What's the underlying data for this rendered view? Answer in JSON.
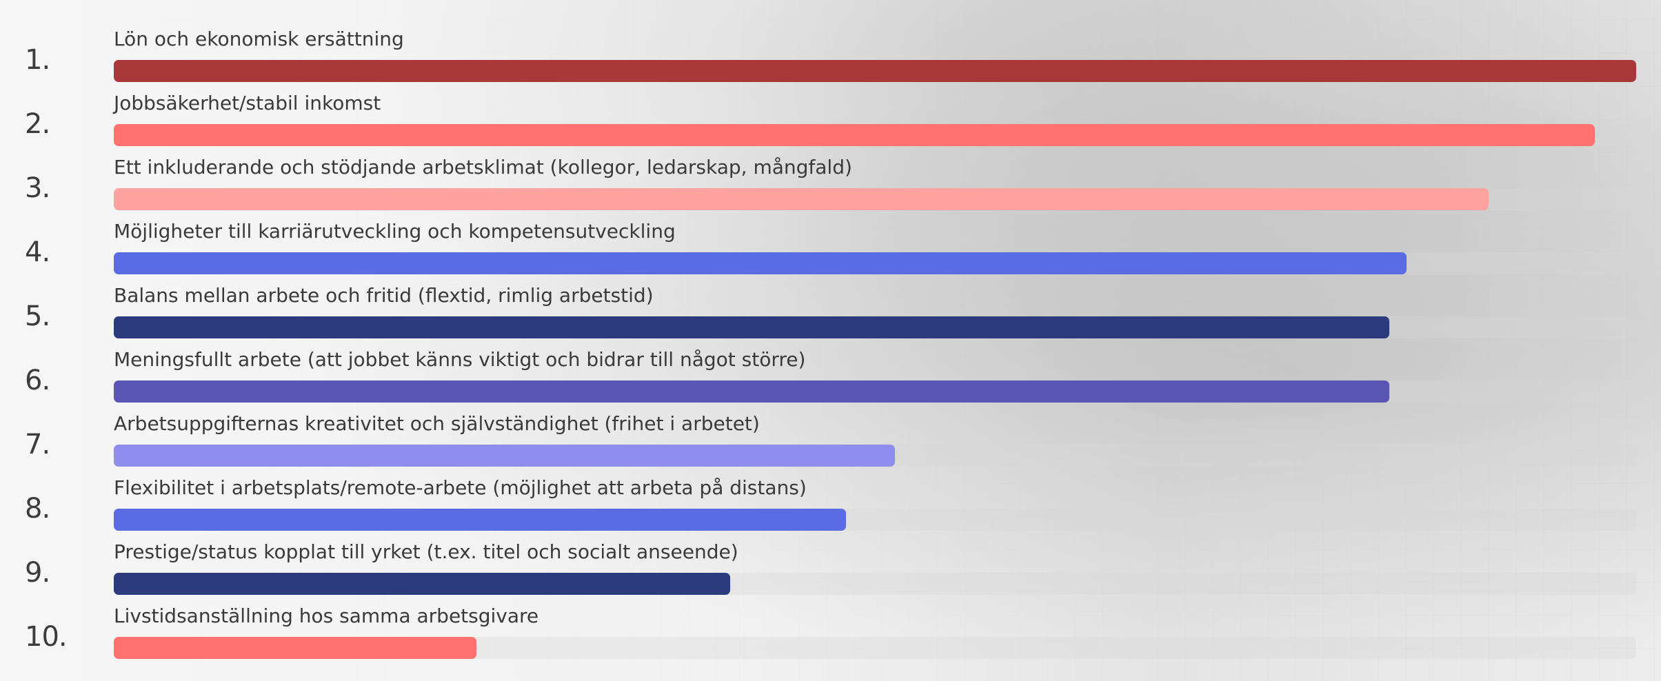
{
  "chart_data": {
    "type": "bar",
    "orientation": "horizontal",
    "title": "",
    "xlabel": "",
    "ylabel": "",
    "xlim": [
      0,
      100
    ],
    "grid": false,
    "legend": "none",
    "ranks": [
      "1.",
      "2.",
      "3.",
      "4.",
      "5.",
      "6.",
      "7.",
      "8.",
      "9.",
      "10."
    ],
    "categories": [
      "Lön och ekonomisk ersättning",
      "Jobbsäkerhet/stabil inkomst",
      "Ett inkluderande och stödjande arbetsklimat (kollegor, ledarskap, mångfald)",
      "Möjligheter till karriärutveckling och kompetensutveckling",
      "Balans mellan arbete och fritid (flextid, rimlig arbetstid)",
      "Meningsfullt arbete (att jobbet känns viktigt och bidrar till något större)",
      "Arbetsuppgifternas kreativitet och självständighet (frihet i arbetet)",
      "Flexibilitet i arbetsplats/remote-arbete (möjlighet att arbeta på distans)",
      "Prestige/status kopplat till yrket (t.ex. titel och socialt anseende)",
      "Livstidsanställning hos samma arbetsgivare"
    ],
    "values": [
      100,
      97.3,
      90.3,
      84.9,
      83.8,
      83.8,
      51.3,
      48.1,
      40.5,
      23.8
    ],
    "colors": [
      "#a8383a",
      "#ff7270",
      "#ffa3a1",
      "#5a6be3",
      "#2c3a7e",
      "#5b55b4",
      "#8f8ded",
      "#5a6be3",
      "#2c3a7e",
      "#ff7270"
    ]
  }
}
